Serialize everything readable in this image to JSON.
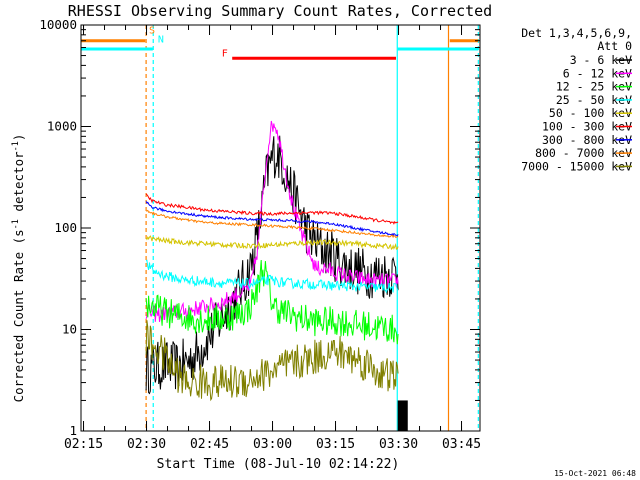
{
  "chart_data": {
    "type": "line",
    "title": "RHESSI Observing Summary Count Rates, Corrected",
    "xlabel": "Start Time (08-Jul-10 02:14:22)",
    "ylabel": "Corrected Count Rate (s⁻¹ detector⁻¹)",
    "ylabel_parts": {
      "main": "Corrected Count Rate (s",
      "sup1": "-1",
      "mid": " detector",
      "sup2": "-1",
      "end": ")"
    },
    "x_unit": "minutes after 02:14:22",
    "xlim": [
      0,
      95
    ],
    "ylim": [
      1,
      10000
    ],
    "yscale": "log",
    "x_ticks": [
      {
        "value": 0.6,
        "label": "02:15"
      },
      {
        "value": 15.6,
        "label": "02:30"
      },
      {
        "value": 30.6,
        "label": "02:45"
      },
      {
        "value": 45.6,
        "label": "03:00"
      },
      {
        "value": 60.6,
        "label": "03:15"
      },
      {
        "value": 75.6,
        "label": "03:30"
      },
      {
        "value": 90.6,
        "label": "03:45"
      }
    ],
    "y_ticks": [
      {
        "value": 1,
        "label": "1"
      },
      {
        "value": 10,
        "label": "10"
      },
      {
        "value": 100,
        "label": "100"
      },
      {
        "value": 1000,
        "label": "1000"
      },
      {
        "value": 10000,
        "label": "10000"
      }
    ],
    "legend": {
      "position": "right",
      "header": [
        "Det 1,3,4,5,6,9,",
        "Att 0"
      ],
      "entries": [
        {
          "label": "3 - 6 keV",
          "color": "#000000"
        },
        {
          "label": "6 - 12 keV",
          "color": "#ff00ff"
        },
        {
          "label": "12 - 25 keV",
          "color": "#00ff00"
        },
        {
          "label": "25 - 50 keV",
          "color": "#00ffff"
        },
        {
          "label": "50 - 100 keV",
          "color": "#d4c400"
        },
        {
          "label": "100 - 300 keV",
          "color": "#ff0000"
        },
        {
          "label": "300 - 800 keV",
          "color": "#0000ff"
        },
        {
          "label": "800 - 7000 keV",
          "color": "#ff8000"
        },
        {
          "label": "7000 - 15000 keV",
          "color": "#808000"
        }
      ]
    },
    "series": [
      {
        "name": "3 - 6 keV",
        "color": "#000000",
        "noise": 0.25,
        "x": [
          15.5,
          17,
          20,
          23,
          26,
          28,
          30,
          33,
          35,
          37,
          39,
          40.5,
          42,
          43,
          44,
          45,
          46,
          47,
          48,
          50,
          52,
          54,
          56,
          58,
          60,
          62,
          64,
          66,
          68,
          70,
          72,
          74,
          75.5
        ],
        "y": [
          4,
          4.2,
          4.5,
          4.3,
          5,
          6,
          8,
          12,
          16,
          22,
          30,
          42,
          80,
          150,
          300,
          420,
          550,
          520,
          430,
          250,
          150,
          90,
          70,
          60,
          55,
          45,
          40,
          38,
          36,
          35,
          35,
          36,
          38
        ]
      },
      {
        "name": "6 - 12 keV",
        "color": "#ff00ff",
        "noise": 0.08,
        "x": [
          15.5,
          18,
          21,
          24,
          27,
          30,
          33,
          35,
          37,
          39,
          40.5,
          42,
          43,
          44,
          45,
          46,
          47,
          48,
          50,
          52,
          54,
          56,
          58,
          60,
          62,
          64,
          66,
          68,
          70,
          72,
          74,
          75.5
        ],
        "y": [
          15,
          14,
          14.5,
          15,
          16,
          17,
          18,
          20,
          22,
          24,
          28,
          60,
          150,
          400,
          900,
          1100,
          850,
          500,
          200,
          100,
          60,
          40,
          40,
          37,
          35,
          33,
          32,
          31,
          30,
          30,
          30,
          30
        ]
      },
      {
        "name": "12 - 25 keV",
        "color": "#00ff00",
        "noise": 0.15,
        "x": [
          15.5,
          18,
          22,
          26,
          30,
          34,
          37,
          40,
          42,
          43,
          44,
          45,
          46,
          48,
          50,
          52,
          54,
          56,
          58,
          60,
          62,
          64,
          66,
          68,
          70,
          72,
          74,
          75.5
        ],
        "y": [
          18,
          16,
          14,
          13,
          12.5,
          13,
          14,
          16,
          25,
          40,
          35,
          22,
          17,
          15,
          14,
          13,
          12.5,
          12,
          12,
          12,
          12,
          11.5,
          11,
          11,
          10.5,
          10.5,
          10,
          10
        ]
      },
      {
        "name": "25 - 50 keV",
        "color": "#00ffff",
        "noise": 0.05,
        "x": [
          15.5,
          17,
          20,
          24,
          28,
          32,
          36,
          40,
          42,
          44,
          45,
          46,
          48,
          50,
          55,
          60,
          65,
          70,
          75.5
        ],
        "y": [
          45,
          38,
          34,
          31,
          30,
          29,
          28.5,
          28.5,
          29,
          30,
          31,
          30,
          29,
          28.5,
          28,
          27,
          26.5,
          26,
          25.5
        ]
      },
      {
        "name": "50 - 100 keV",
        "color": "#d4c400",
        "noise": 0.025,
        "x": [
          15.5,
          17,
          20,
          25,
          30,
          35,
          40,
          45,
          50,
          55,
          60,
          65,
          70,
          75.5
        ],
        "y": [
          82,
          78,
          75,
          72,
          70,
          68,
          67,
          68,
          70,
          72,
          72,
          70,
          67,
          65
        ]
      },
      {
        "name": "100 - 300 keV",
        "color": "#ff0000",
        "noise": 0.015,
        "x": [
          15.5,
          17,
          20,
          25,
          30,
          35,
          40,
          45,
          50,
          55,
          60,
          65,
          70,
          75.5
        ],
        "y": [
          210,
          185,
          170,
          160,
          150,
          145,
          140,
          138,
          140,
          142,
          140,
          130,
          120,
          110
        ]
      },
      {
        "name": "300 - 800 keV",
        "color": "#0000ff",
        "noise": 0.012,
        "x": [
          15.5,
          17,
          20,
          25,
          30,
          35,
          40,
          45,
          50,
          55,
          60,
          65,
          70,
          75.5
        ],
        "y": [
          180,
          160,
          148,
          138,
          130,
          125,
          122,
          120,
          118,
          115,
          110,
          100,
          92,
          85
        ]
      },
      {
        "name": "800 - 7000 keV",
        "color": "#ff8000",
        "noise": 0.012,
        "x": [
          15.5,
          17,
          20,
          25,
          30,
          35,
          40,
          45,
          50,
          55,
          60,
          65,
          70,
          75.5
        ],
        "y": [
          150,
          140,
          130,
          120,
          113,
          110,
          108,
          105,
          102,
          99,
          95,
          90,
          85,
          82
        ]
      },
      {
        "name": "7000 - 15000 keV",
        "color": "#808000",
        "noise": 0.18,
        "x": [
          15.5,
          17,
          20,
          22,
          25,
          30,
          35,
          40,
          45,
          50,
          55,
          58,
          60,
          62,
          65,
          68,
          70,
          72,
          74,
          75.5
        ],
        "y": [
          8.5,
          7,
          5.5,
          4,
          3,
          3,
          3,
          3.2,
          3.8,
          4.5,
          5.2,
          5.8,
          6,
          5.8,
          5.2,
          4.6,
          4,
          3.5,
          3.5,
          3.5
        ]
      }
    ],
    "annotations": [
      {
        "type": "vline",
        "x": 15.5,
        "color": "#ff8000",
        "style": "dashed"
      },
      {
        "type": "vline",
        "x": 17.2,
        "color": "#00ffff",
        "style": "dashed"
      },
      {
        "type": "vline",
        "x": 75.3,
        "color": "#00ffff",
        "style": "solid"
      },
      {
        "type": "vline",
        "x": 87.5,
        "color": "#ff8000",
        "style": "solid"
      },
      {
        "type": "vline",
        "x": 94.6,
        "color": "#00ffff",
        "style": "dashed"
      },
      {
        "type": "hbar",
        "x1": 0,
        "x2": 15.3,
        "y": 7000,
        "color": "#ff8000"
      },
      {
        "type": "hbar",
        "x1": 0,
        "x2": 17.1,
        "y": 5800,
        "color": "#00ffff"
      },
      {
        "type": "hbar",
        "x1": 36,
        "x2": 75,
        "y": 4700,
        "color": "#ff0000"
      },
      {
        "type": "hbar",
        "x1": 75.4,
        "x2": 94.6,
        "y": 5800,
        "color": "#00ffff"
      },
      {
        "type": "hbar",
        "x1": 87.8,
        "x2": 94.6,
        "y": 7000,
        "color": "#ff8000"
      },
      {
        "type": "dropout",
        "x1": 75.4,
        "x2": 77.8,
        "color": "#000000"
      }
    ],
    "markers": [
      {
        "text": "S",
        "color": "#ff8000",
        "x": 16.2,
        "y": 8200
      },
      {
        "text": "N",
        "color": "#00ffff",
        "x": 18.3,
        "y": 6700
      },
      {
        "text": "F",
        "color": "#ff0000",
        "x": 33.5,
        "y": 4900
      }
    ],
    "timestamp": "15-Oct-2021 06:48"
  }
}
